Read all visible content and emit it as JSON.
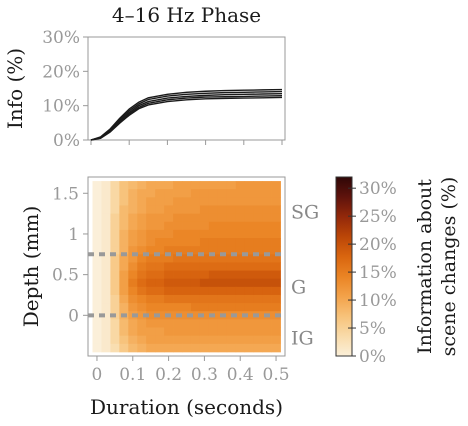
{
  "chart_data": [
    {
      "type": "line",
      "title": "4–16 Hz  Phase",
      "ylabel": "Info (%)",
      "xlim": [
        0,
        0.5
      ],
      "ylim": [
        0,
        30
      ],
      "yticks": [
        "0%",
        "10%",
        "20%",
        "30%"
      ],
      "grid": false,
      "x": [
        0,
        0.025,
        0.05,
        0.075,
        0.1,
        0.125,
        0.15,
        0.2,
        0.25,
        0.3,
        0.35,
        0.4,
        0.45,
        0.5
      ],
      "series": [
        {
          "values": [
            0,
            0.8,
            3,
            6,
            8.5,
            10.5,
            11.8,
            12.8,
            13.3,
            13.6,
            13.8,
            13.9,
            14.0,
            14.1
          ]
        },
        {
          "values": [
            0,
            0.7,
            2.7,
            5.6,
            8.0,
            10.0,
            11.2,
            12.2,
            12.7,
            13.0,
            13.2,
            13.3,
            13.4,
            13.5
          ]
        },
        {
          "values": [
            0,
            0.6,
            2.5,
            5.2,
            7.6,
            9.5,
            10.7,
            11.7,
            12.2,
            12.5,
            12.6,
            12.7,
            12.8,
            12.9
          ]
        },
        {
          "values": [
            0,
            0.9,
            3.2,
            6.3,
            9.0,
            11.0,
            12.3,
            13.3,
            13.9,
            14.2,
            14.4,
            14.5,
            14.6,
            14.7
          ]
        },
        {
          "values": [
            0,
            0.5,
            2.3,
            4.9,
            7.2,
            9.1,
            10.2,
            11.2,
            11.7,
            12.0,
            12.1,
            12.2,
            12.3,
            12.4
          ]
        }
      ],
      "line_color": "#1a1a1a"
    },
    {
      "type": "heatmap",
      "xlabel": "Duration (seconds)",
      "ylabel": "Depth (mm)",
      "xlim": [
        -0.025,
        0.525
      ],
      "ylim": [
        -0.5,
        1.7
      ],
      "xticks": [
        "0",
        "0.1",
        "0.2",
        "0.3",
        "0.4",
        "0.5"
      ],
      "yticks": [
        "0",
        "0.5",
        "1",
        "1.5"
      ],
      "x": [
        0,
        0.025,
        0.05,
        0.075,
        0.1,
        0.125,
        0.15,
        0.175,
        0.2,
        0.225,
        0.25,
        0.275,
        0.3,
        0.325,
        0.35,
        0.375,
        0.4,
        0.425,
        0.45,
        0.475,
        0.5
      ],
      "y": [
        1.6,
        1.5,
        1.4,
        1.3,
        1.2,
        1.1,
        1.0,
        0.9,
        0.8,
        0.7,
        0.6,
        0.5,
        0.4,
        0.3,
        0.2,
        0.1,
        0.0,
        -0.1,
        -0.2,
        -0.3,
        -0.4
      ],
      "values": [
        [
          0,
          1,
          4,
          7,
          8,
          9,
          10,
          10,
          10,
          11,
          11,
          11,
          11,
          11,
          11,
          11,
          12,
          12,
          12,
          12,
          12
        ],
        [
          0,
          1,
          4,
          7,
          9,
          10,
          10,
          11,
          11,
          11,
          11,
          12,
          12,
          12,
          12,
          12,
          12,
          12,
          12,
          12,
          12
        ],
        [
          0,
          1,
          4,
          7,
          9,
          10,
          11,
          11,
          11,
          12,
          12,
          12,
          12,
          12,
          12,
          12,
          12,
          12,
          12,
          12,
          12
        ],
        [
          0,
          1,
          4,
          8,
          9,
          10,
          11,
          11,
          12,
          12,
          12,
          12,
          13,
          13,
          13,
          13,
          13,
          13,
          13,
          13,
          13
        ],
        [
          0,
          1,
          5,
          8,
          10,
          11,
          12,
          12,
          12,
          13,
          13,
          13,
          13,
          13,
          13,
          13,
          13,
          13,
          13,
          13,
          13
        ],
        [
          0,
          1,
          5,
          8,
          10,
          11,
          12,
          12,
          13,
          13,
          13,
          13,
          13,
          14,
          14,
          14,
          14,
          14,
          14,
          14,
          14
        ],
        [
          0,
          1,
          5,
          9,
          11,
          12,
          13,
          13,
          13,
          14,
          14,
          14,
          14,
          14,
          14,
          14,
          14,
          14,
          14,
          14,
          14
        ],
        [
          0,
          1,
          5,
          9,
          11,
          12,
          13,
          14,
          14,
          14,
          14,
          14,
          15,
          15,
          15,
          15,
          15,
          15,
          15,
          15,
          15
        ],
        [
          0,
          1,
          5,
          9,
          12,
          13,
          14,
          14,
          15,
          15,
          15,
          15,
          15,
          15,
          15,
          15,
          15,
          15,
          15,
          15,
          15
        ],
        [
          0,
          1,
          6,
          10,
          12,
          14,
          15,
          15,
          15,
          16,
          16,
          16,
          16,
          16,
          16,
          16,
          16,
          16,
          16,
          16,
          16
        ],
        [
          0,
          1,
          6,
          10,
          13,
          15,
          16,
          16,
          17,
          17,
          17,
          17,
          17,
          17,
          17,
          17,
          17,
          17,
          17,
          17,
          17
        ],
        [
          0,
          1,
          6,
          11,
          14,
          16,
          17,
          17,
          18,
          18,
          18,
          18,
          18,
          19,
          19,
          19,
          19,
          19,
          19,
          19,
          19
        ],
        [
          0,
          1,
          6,
          11,
          15,
          17,
          18,
          18,
          19,
          19,
          19,
          19,
          20,
          20,
          20,
          20,
          20,
          20,
          20,
          20,
          20
        ],
        [
          0,
          1,
          6,
          11,
          14,
          16,
          17,
          17,
          18,
          18,
          18,
          18,
          18,
          18,
          18,
          18,
          18,
          18,
          18,
          18,
          18
        ],
        [
          0,
          1,
          5,
          10,
          13,
          14,
          15,
          15,
          16,
          16,
          16,
          16,
          16,
          16,
          16,
          16,
          16,
          16,
          16,
          16,
          16
        ],
        [
          0,
          1,
          5,
          9,
          12,
          13,
          14,
          14,
          14,
          14,
          14,
          15,
          15,
          15,
          15,
          15,
          15,
          15,
          15,
          15,
          15
        ],
        [
          0,
          1,
          5,
          9,
          11,
          12,
          13,
          13,
          13,
          13,
          13,
          13,
          13,
          13,
          13,
          13,
          13,
          13,
          13,
          13,
          13
        ],
        [
          0,
          1,
          4,
          8,
          10,
          11,
          12,
          12,
          12,
          12,
          12,
          12,
          12,
          12,
          12,
          12,
          12,
          12,
          12,
          12,
          12
        ],
        [
          0,
          1,
          4,
          8,
          10,
          11,
          11,
          11,
          12,
          12,
          12,
          12,
          12,
          12,
          12,
          12,
          12,
          12,
          12,
          12,
          12
        ],
        [
          0,
          1,
          4,
          7,
          9,
          10,
          11,
          11,
          11,
          11,
          11,
          11,
          11,
          11,
          11,
          11,
          11,
          11,
          11,
          11,
          11
        ],
        [
          0,
          1,
          3,
          6,
          8,
          9,
          10,
          10,
          10,
          10,
          10,
          10,
          10,
          10,
          10,
          10,
          10,
          10,
          10,
          10,
          10
        ]
      ],
      "boundaries": [
        0.75,
        0.0
      ],
      "boundary_color": "#999999",
      "layers": [
        "SG",
        "G",
        "IG"
      ],
      "colorbar": {
        "label_line1": "Information about",
        "label_line2": "scene changes (%)",
        "range": [
          0,
          32
        ],
        "ticks": [
          "0%",
          "5%",
          "10%",
          "15%",
          "20%",
          "25%",
          "30%"
        ],
        "colors": [
          "#fbefd9",
          "#f9dbaa",
          "#f7c27a",
          "#f3a24a",
          "#ea8424",
          "#d9650f",
          "#bb4607",
          "#93280a",
          "#5f130c",
          "#2f0707"
        ]
      }
    }
  ]
}
